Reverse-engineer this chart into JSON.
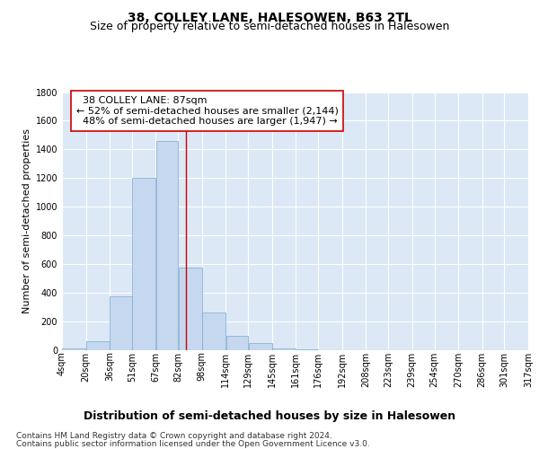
{
  "title": "38, COLLEY LANE, HALESOWEN, B63 2TL",
  "subtitle": "Size of property relative to semi-detached houses in Halesowen",
  "xlabel": "Distribution of semi-detached houses by size in Halesowen",
  "ylabel": "Number of semi-detached properties",
  "footer1": "Contains HM Land Registry data © Crown copyright and database right 2024.",
  "footer2": "Contains public sector information licensed under the Open Government Licence v3.0.",
  "property_label": "38 COLLEY LANE: 87sqm",
  "pct_smaller": 52,
  "n_smaller": 2144,
  "pct_larger": 48,
  "n_larger": 1947,
  "bar_left_edges": [
    4,
    20,
    36,
    51,
    67,
    82,
    98,
    114,
    129,
    145,
    161,
    176,
    192,
    208,
    223,
    239,
    254,
    270,
    286,
    301
  ],
  "bar_widths": [
    16,
    16,
    15,
    16,
    15,
    16,
    16,
    15,
    16,
    16,
    15,
    16,
    16,
    15,
    16,
    15,
    16,
    16,
    15,
    16
  ],
  "bar_heights": [
    10,
    60,
    375,
    1200,
    1460,
    575,
    265,
    100,
    50,
    15,
    5,
    3,
    2,
    1,
    1,
    1,
    1,
    1,
    1,
    1
  ],
  "tick_labels": [
    "4sqm",
    "20sqm",
    "36sqm",
    "51sqm",
    "67sqm",
    "82sqm",
    "98sqm",
    "114sqm",
    "129sqm",
    "145sqm",
    "161sqm",
    "176sqm",
    "192sqm",
    "208sqm",
    "223sqm",
    "239sqm",
    "254sqm",
    "270sqm",
    "286sqm",
    "301sqm",
    "317sqm"
  ],
  "tick_positions": [
    4,
    20,
    36,
    51,
    67,
    82,
    98,
    114,
    129,
    145,
    161,
    176,
    192,
    208,
    223,
    239,
    254,
    270,
    286,
    301,
    317
  ],
  "bar_color": "#c5d8ef",
  "bar_edge_color": "#7aaacf",
  "vline_color": "#cc0000",
  "vline_x": 87,
  "ylim": [
    0,
    1800
  ],
  "yticks": [
    0,
    200,
    400,
    600,
    800,
    1000,
    1200,
    1400,
    1600,
    1800
  ],
  "xlim": [
    4,
    317
  ],
  "fig_bg_color": "#ffffff",
  "plot_bg_color": "#dce8f5",
  "annotation_box_color": "#ffffff",
  "annotation_box_edge": "#cc0000",
  "title_fontsize": 10,
  "subtitle_fontsize": 9,
  "annotation_fontsize": 8,
  "xlabel_fontsize": 9,
  "ylabel_fontsize": 8,
  "tick_fontsize": 7,
  "footer_fontsize": 6.5
}
